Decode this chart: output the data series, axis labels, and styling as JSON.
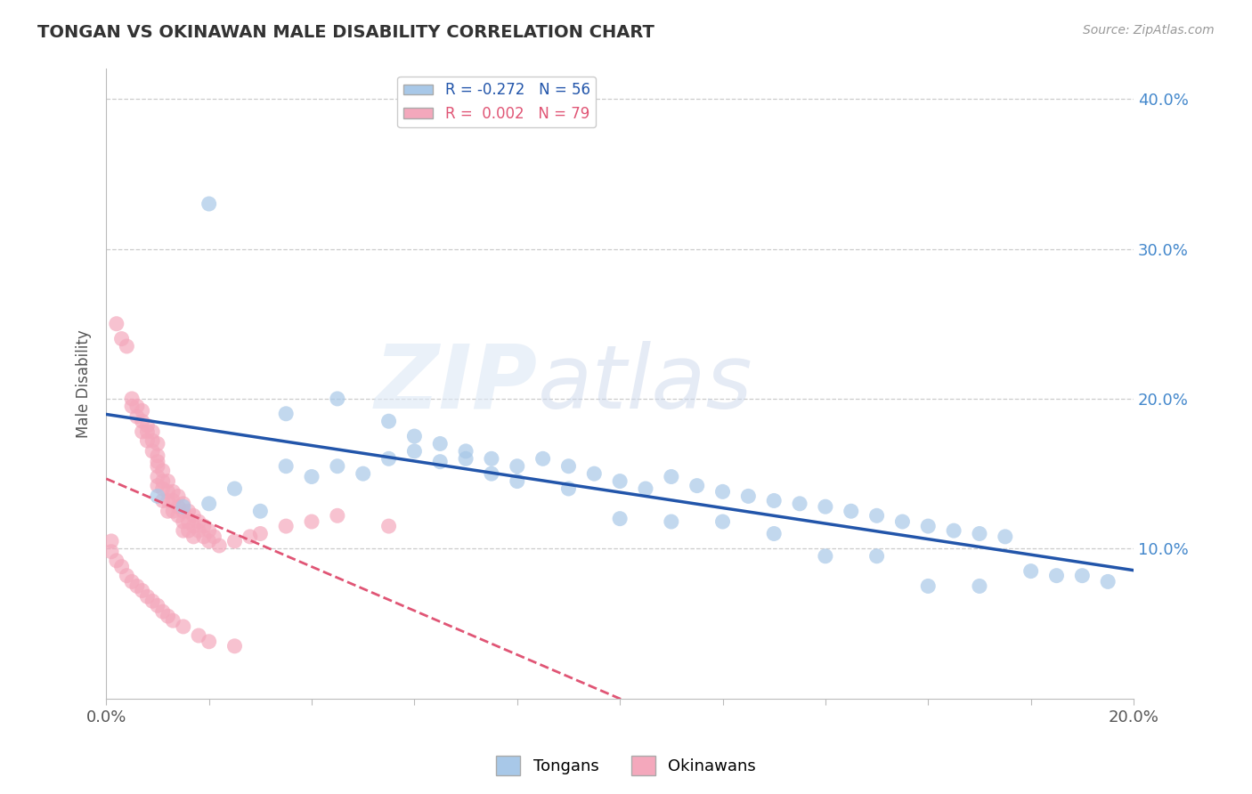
{
  "title": "TONGAN VS OKINAWAN MALE DISABILITY CORRELATION CHART",
  "source": "Source: ZipAtlas.com",
  "ylabel": "Male Disability",
  "xlabel": "",
  "xlim": [
    0.0,
    0.2
  ],
  "ylim": [
    0.0,
    0.42
  ],
  "tongan_R": -0.272,
  "tongan_N": 56,
  "okinawan_R": 0.002,
  "okinawan_N": 79,
  "tongan_color": "#a8c8e8",
  "okinawan_color": "#f4a8bc",
  "tongan_line_color": "#2255aa",
  "okinawan_line_color": "#e05575",
  "background_color": "#ffffff",
  "grid_color": "#cccccc",
  "title_color": "#333333",
  "tongan_x": [
    0.02,
    0.035,
    0.045,
    0.055,
    0.06,
    0.065,
    0.07,
    0.075,
    0.08,
    0.085,
    0.09,
    0.095,
    0.1,
    0.105,
    0.11,
    0.115,
    0.12,
    0.125,
    0.13,
    0.135,
    0.14,
    0.145,
    0.15,
    0.155,
    0.16,
    0.165,
    0.17,
    0.175,
    0.18,
    0.185,
    0.19,
    0.195,
    0.01,
    0.015,
    0.02,
    0.025,
    0.03,
    0.035,
    0.04,
    0.045,
    0.05,
    0.055,
    0.06,
    0.065,
    0.07,
    0.075,
    0.08,
    0.09,
    0.1,
    0.11,
    0.12,
    0.13,
    0.14,
    0.15,
    0.16,
    0.17
  ],
  "tongan_y": [
    0.33,
    0.19,
    0.2,
    0.185,
    0.175,
    0.17,
    0.165,
    0.16,
    0.155,
    0.16,
    0.155,
    0.15,
    0.145,
    0.14,
    0.148,
    0.142,
    0.138,
    0.135,
    0.132,
    0.13,
    0.128,
    0.125,
    0.122,
    0.118,
    0.115,
    0.112,
    0.11,
    0.108,
    0.085,
    0.082,
    0.082,
    0.078,
    0.135,
    0.128,
    0.13,
    0.14,
    0.125,
    0.155,
    0.148,
    0.155,
    0.15,
    0.16,
    0.165,
    0.158,
    0.16,
    0.15,
    0.145,
    0.14,
    0.12,
    0.118,
    0.118,
    0.11,
    0.095,
    0.095,
    0.075,
    0.075
  ],
  "okinawan_x": [
    0.002,
    0.003,
    0.004,
    0.005,
    0.005,
    0.006,
    0.006,
    0.007,
    0.007,
    0.007,
    0.008,
    0.008,
    0.008,
    0.009,
    0.009,
    0.009,
    0.01,
    0.01,
    0.01,
    0.01,
    0.01,
    0.01,
    0.011,
    0.011,
    0.011,
    0.011,
    0.012,
    0.012,
    0.012,
    0.012,
    0.013,
    0.013,
    0.013,
    0.014,
    0.014,
    0.014,
    0.015,
    0.015,
    0.015,
    0.015,
    0.016,
    0.016,
    0.016,
    0.017,
    0.017,
    0.017,
    0.018,
    0.018,
    0.019,
    0.019,
    0.02,
    0.02,
    0.021,
    0.022,
    0.025,
    0.028,
    0.03,
    0.035,
    0.04,
    0.045,
    0.001,
    0.001,
    0.002,
    0.003,
    0.004,
    0.005,
    0.006,
    0.007,
    0.008,
    0.009,
    0.01,
    0.011,
    0.012,
    0.013,
    0.015,
    0.018,
    0.02,
    0.025,
    0.055
  ],
  "okinawan_y": [
    0.25,
    0.24,
    0.235,
    0.2,
    0.195,
    0.195,
    0.188,
    0.192,
    0.185,
    0.178,
    0.182,
    0.178,
    0.172,
    0.178,
    0.172,
    0.165,
    0.17,
    0.162,
    0.158,
    0.155,
    0.148,
    0.142,
    0.152,
    0.145,
    0.14,
    0.132,
    0.145,
    0.138,
    0.132,
    0.125,
    0.138,
    0.132,
    0.125,
    0.135,
    0.128,
    0.122,
    0.13,
    0.125,
    0.118,
    0.112,
    0.125,
    0.118,
    0.112,
    0.122,
    0.115,
    0.108,
    0.118,
    0.112,
    0.115,
    0.108,
    0.112,
    0.105,
    0.108,
    0.102,
    0.105,
    0.108,
    0.11,
    0.115,
    0.118,
    0.122,
    0.105,
    0.098,
    0.092,
    0.088,
    0.082,
    0.078,
    0.075,
    0.072,
    0.068,
    0.065,
    0.062,
    0.058,
    0.055,
    0.052,
    0.048,
    0.042,
    0.038,
    0.035,
    0.115
  ]
}
